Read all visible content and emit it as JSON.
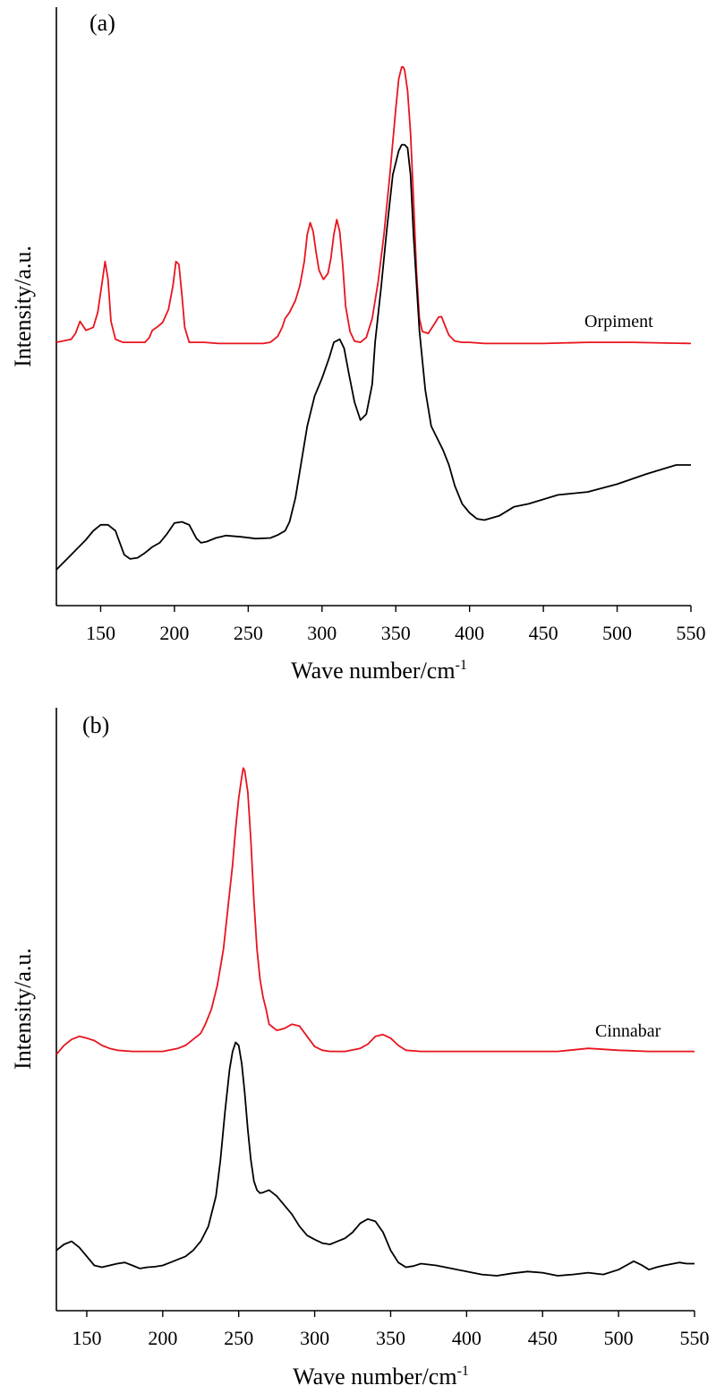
{
  "chart_data": [
    {
      "type": "line",
      "panel_label": "(a)",
      "xlabel": "Wave number/cm",
      "xlabel_sup": "-1",
      "ylabel": "Intensity/a.u.",
      "xlim": [
        120,
        550
      ],
      "ylim": [
        0,
        1
      ],
      "xticks": [
        150,
        200,
        250,
        300,
        350,
        400,
        450,
        500,
        550
      ],
      "y_ticks_shown": false,
      "grid": false,
      "series": [
        {
          "name": "Orpiment",
          "color": "#e8141e",
          "x": [
            120,
            130,
            133,
            136,
            140,
            145,
            148,
            151,
            153,
            155,
            157,
            160,
            165,
            170,
            175,
            180,
            183,
            185,
            188,
            192,
            196,
            199,
            201,
            203,
            205,
            207,
            210,
            215,
            220,
            230,
            240,
            250,
            260,
            265,
            270,
            273,
            275,
            278,
            282,
            285,
            288,
            290,
            292,
            294,
            296,
            298,
            301,
            304,
            306,
            308,
            310,
            312,
            314,
            316,
            319,
            322,
            326,
            330,
            334,
            338,
            342,
            346,
            350,
            352,
            354,
            355,
            356,
            358,
            360,
            362,
            364,
            366,
            368,
            372,
            376,
            379,
            381,
            383,
            386,
            390,
            395,
            400,
            410,
            420,
            450,
            480,
            510,
            550
          ],
          "y": [
            0.44,
            0.445,
            0.455,
            0.475,
            0.46,
            0.465,
            0.49,
            0.54,
            0.575,
            0.545,
            0.475,
            0.445,
            0.44,
            0.44,
            0.44,
            0.44,
            0.448,
            0.46,
            0.465,
            0.473,
            0.495,
            0.535,
            0.575,
            0.57,
            0.52,
            0.465,
            0.44,
            0.44,
            0.44,
            0.438,
            0.438,
            0.438,
            0.438,
            0.44,
            0.45,
            0.465,
            0.48,
            0.49,
            0.51,
            0.535,
            0.575,
            0.62,
            0.64,
            0.625,
            0.59,
            0.56,
            0.545,
            0.555,
            0.58,
            0.62,
            0.645,
            0.625,
            0.57,
            0.5,
            0.458,
            0.442,
            0.44,
            0.448,
            0.48,
            0.54,
            0.62,
            0.72,
            0.83,
            0.88,
            0.9,
            0.9,
            0.895,
            0.86,
            0.79,
            0.68,
            0.56,
            0.48,
            0.458,
            0.455,
            0.47,
            0.482,
            0.483,
            0.47,
            0.452,
            0.442,
            0.44,
            0.44,
            0.438,
            0.438,
            0.438,
            0.44,
            0.44,
            0.438
          ]
        },
        {
          "name": "",
          "color": "#000000",
          "x": [
            120,
            130,
            140,
            145,
            150,
            155,
            160,
            163,
            166,
            170,
            175,
            180,
            185,
            190,
            195,
            200,
            205,
            210,
            215,
            218,
            222,
            228,
            235,
            245,
            255,
            265,
            270,
            275,
            278,
            282,
            286,
            290,
            295,
            300,
            305,
            308,
            312,
            315,
            318,
            322,
            326,
            330,
            334,
            336,
            340,
            344,
            348,
            352,
            354,
            356,
            358,
            360,
            362,
            366,
            370,
            374,
            378,
            382,
            386,
            390,
            395,
            400,
            405,
            410,
            420,
            430,
            440,
            460,
            480,
            500,
            520,
            540,
            550
          ],
          "y": [
            0.06,
            0.085,
            0.11,
            0.125,
            0.135,
            0.135,
            0.125,
            0.105,
            0.085,
            0.078,
            0.08,
            0.088,
            0.098,
            0.105,
            0.12,
            0.138,
            0.14,
            0.135,
            0.112,
            0.105,
            0.107,
            0.113,
            0.117,
            0.115,
            0.112,
            0.113,
            0.118,
            0.125,
            0.14,
            0.18,
            0.24,
            0.3,
            0.35,
            0.38,
            0.415,
            0.44,
            0.445,
            0.43,
            0.39,
            0.34,
            0.31,
            0.32,
            0.37,
            0.44,
            0.53,
            0.63,
            0.72,
            0.76,
            0.77,
            0.77,
            0.765,
            0.72,
            0.62,
            0.46,
            0.36,
            0.3,
            0.28,
            0.26,
            0.235,
            0.2,
            0.17,
            0.155,
            0.145,
            0.143,
            0.15,
            0.165,
            0.17,
            0.185,
            0.19,
            0.203,
            0.22,
            0.235,
            0.235
          ]
        }
      ]
    },
    {
      "type": "line",
      "panel_label": "(b)",
      "xlabel": "Wave number/cm",
      "xlabel_sup": "-1",
      "ylabel": "Intensity/a.u.",
      "xlim": [
        130,
        550
      ],
      "ylim": [
        0,
        1
      ],
      "xticks": [
        150,
        200,
        250,
        300,
        350,
        400,
        450,
        500,
        550
      ],
      "y_ticks_shown": false,
      "grid": false,
      "series": [
        {
          "name": "Cinnabar",
          "color": "#e8141e",
          "x": [
            130,
            135,
            140,
            145,
            150,
            155,
            160,
            165,
            170,
            180,
            190,
            200,
            210,
            215,
            220,
            225,
            228,
            232,
            236,
            240,
            243,
            246,
            248,
            250,
            252,
            253,
            254,
            256,
            258,
            260,
            262,
            264,
            266,
            268,
            270,
            275,
            280,
            285,
            290,
            295,
            300,
            305,
            310,
            320,
            330,
            335,
            340,
            345,
            350,
            355,
            360,
            370,
            380,
            400,
            420,
            440,
            460,
            480,
            500,
            520,
            540,
            550
          ],
          "y": [
            0.425,
            0.44,
            0.45,
            0.455,
            0.452,
            0.448,
            0.44,
            0.435,
            0.432,
            0.43,
            0.43,
            0.43,
            0.435,
            0.44,
            0.45,
            0.46,
            0.475,
            0.5,
            0.54,
            0.6,
            0.67,
            0.74,
            0.8,
            0.85,
            0.885,
            0.9,
            0.895,
            0.86,
            0.78,
            0.68,
            0.6,
            0.55,
            0.52,
            0.5,
            0.475,
            0.465,
            0.468,
            0.475,
            0.472,
            0.455,
            0.438,
            0.432,
            0.43,
            0.43,
            0.435,
            0.442,
            0.455,
            0.458,
            0.452,
            0.44,
            0.432,
            0.43,
            0.43,
            0.43,
            0.43,
            0.43,
            0.43,
            0.435,
            0.432,
            0.43,
            0.43,
            0.43
          ]
        },
        {
          "name": "",
          "color": "#000000",
          "x": [
            130,
            135,
            140,
            145,
            150,
            155,
            160,
            165,
            170,
            175,
            180,
            185,
            190,
            195,
            200,
            205,
            210,
            215,
            220,
            225,
            230,
            235,
            238,
            241,
            244,
            246,
            248,
            250,
            252,
            254,
            256,
            258,
            260,
            262,
            264,
            266,
            268,
            270,
            275,
            280,
            285,
            290,
            295,
            300,
            305,
            310,
            315,
            320,
            325,
            330,
            335,
            340,
            345,
            350,
            355,
            360,
            365,
            370,
            380,
            390,
            400,
            410,
            420,
            430,
            440,
            450,
            460,
            470,
            480,
            490,
            500,
            505,
            510,
            515,
            520,
            525,
            530,
            540,
            545,
            550
          ],
          "y": [
            0.1,
            0.11,
            0.115,
            0.105,
            0.09,
            0.075,
            0.072,
            0.075,
            0.078,
            0.08,
            0.075,
            0.07,
            0.072,
            0.073,
            0.075,
            0.08,
            0.085,
            0.09,
            0.1,
            0.115,
            0.14,
            0.19,
            0.25,
            0.33,
            0.4,
            0.43,
            0.445,
            0.44,
            0.41,
            0.36,
            0.3,
            0.25,
            0.215,
            0.2,
            0.195,
            0.196,
            0.198,
            0.2,
            0.19,
            0.175,
            0.16,
            0.14,
            0.125,
            0.118,
            0.112,
            0.11,
            0.115,
            0.12,
            0.13,
            0.145,
            0.152,
            0.148,
            0.13,
            0.1,
            0.08,
            0.072,
            0.074,
            0.078,
            0.075,
            0.07,
            0.065,
            0.06,
            0.058,
            0.062,
            0.065,
            0.063,
            0.058,
            0.06,
            0.063,
            0.06,
            0.068,
            0.075,
            0.082,
            0.076,
            0.068,
            0.072,
            0.075,
            0.08,
            0.078,
            0.078
          ]
        }
      ]
    }
  ]
}
